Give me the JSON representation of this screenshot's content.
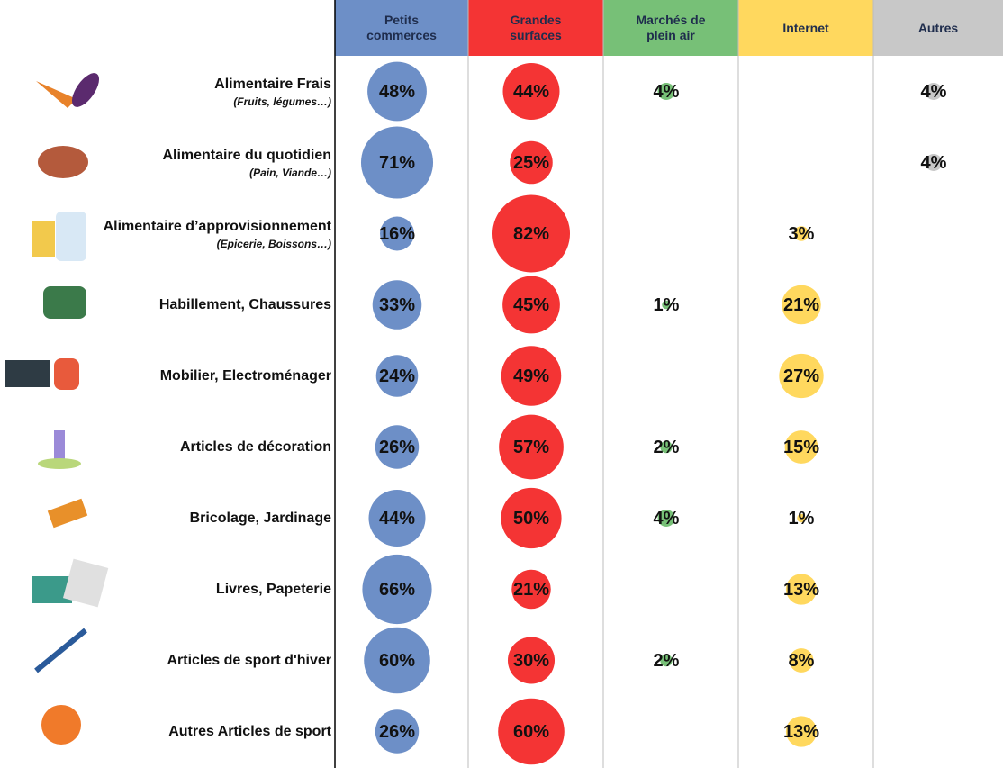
{
  "chart_data": {
    "type": "bubble-table",
    "categories": [
      "Alimentaire Frais",
      "Alimentaire du quotidien",
      "Alimentaire d’approvisionnement",
      "Habillement, Chaussures",
      "Mobilier, Electroménager",
      "Articles de décoration",
      "Bricolage, Jardinage",
      "Livres, Papeterie",
      "Articles de sport d'hiver",
      "Autres Articles de sport"
    ],
    "category_notes": [
      "(Fruits, légumes…)",
      "(Pain, Viande…)",
      "(Epicerie, Boissons…)",
      null,
      null,
      null,
      null,
      null,
      null,
      null
    ],
    "series": [
      {
        "name": "Petits commerces",
        "color": "#6d8fc7",
        "values": [
          48,
          71,
          16,
          33,
          24,
          26,
          44,
          66,
          60,
          26
        ],
        "value_labels": [
          "48%",
          "71%",
          "16%",
          "33%",
          "24%",
          "26%",
          "44%",
          "66%",
          "60%",
          "26%"
        ]
      },
      {
        "name": "Grandes surfaces",
        "color": "#f43434",
        "values": [
          44,
          25,
          82,
          45,
          49,
          57,
          50,
          21,
          30,
          60
        ],
        "value_labels": [
          "44%",
          "25%",
          "82%",
          "45%",
          "49%",
          "57%",
          "50%",
          "21%",
          "30%",
          "60%"
        ]
      },
      {
        "name": "Marchés de plein air",
        "color": "#77c077",
        "values": [
          4,
          null,
          null,
          1,
          null,
          2,
          4,
          null,
          2,
          null
        ],
        "value_labels": [
          "4%",
          null,
          null,
          "1%",
          null,
          "2%",
          "4%",
          null,
          "2%",
          null
        ]
      },
      {
        "name": "Internet",
        "color": "#ffd85e",
        "values": [
          null,
          null,
          3,
          21,
          27,
          15,
          1,
          13,
          8,
          13
        ],
        "value_labels": [
          null,
          null,
          "3%",
          "21%",
          "27%",
          "15%",
          "1%",
          "13%",
          "8%",
          "13%"
        ]
      },
      {
        "name": "Autres",
        "color": "#c8c8c8",
        "values": [
          4,
          4,
          null,
          null,
          null,
          null,
          null,
          null,
          null,
          null
        ],
        "value_labels": [
          "4%",
          "4%",
          null,
          null,
          null,
          null,
          null,
          null,
          null,
          null
        ]
      }
    ]
  }
}
